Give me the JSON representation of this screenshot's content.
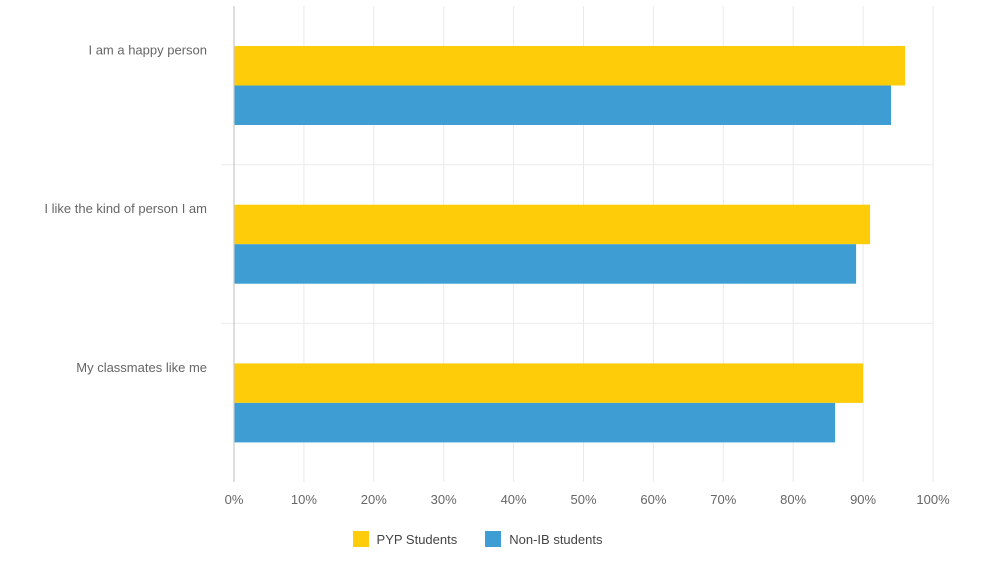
{
  "chart_data": {
    "type": "bar",
    "orientation": "horizontal",
    "categories": [
      "I am a happy person",
      "I like the kind of person I am",
      "My classmates like me"
    ],
    "series": [
      {
        "name": "PYP Students",
        "color": "#FFCC0A",
        "values": [
          96,
          91,
          90
        ]
      },
      {
        "name": "Non-IB students",
        "color": "#3E9ED3",
        "values": [
          94,
          89,
          86
        ]
      }
    ],
    "xlim": [
      0,
      100
    ],
    "x_ticks": [
      {
        "value": 0,
        "label": "0%"
      },
      {
        "value": 10,
        "label": "10%"
      },
      {
        "value": 20,
        "label": "20%"
      },
      {
        "value": 30,
        "label": "30%"
      },
      {
        "value": 40,
        "label": "40%"
      },
      {
        "value": 50,
        "label": "50%"
      },
      {
        "value": 60,
        "label": "60%"
      },
      {
        "value": 70,
        "label": "70%"
      },
      {
        "value": 80,
        "label": "80%"
      },
      {
        "value": 90,
        "label": "90%"
      },
      {
        "value": 100,
        "label": "100%"
      }
    ],
    "grid": true,
    "legend_position": "bottom"
  }
}
